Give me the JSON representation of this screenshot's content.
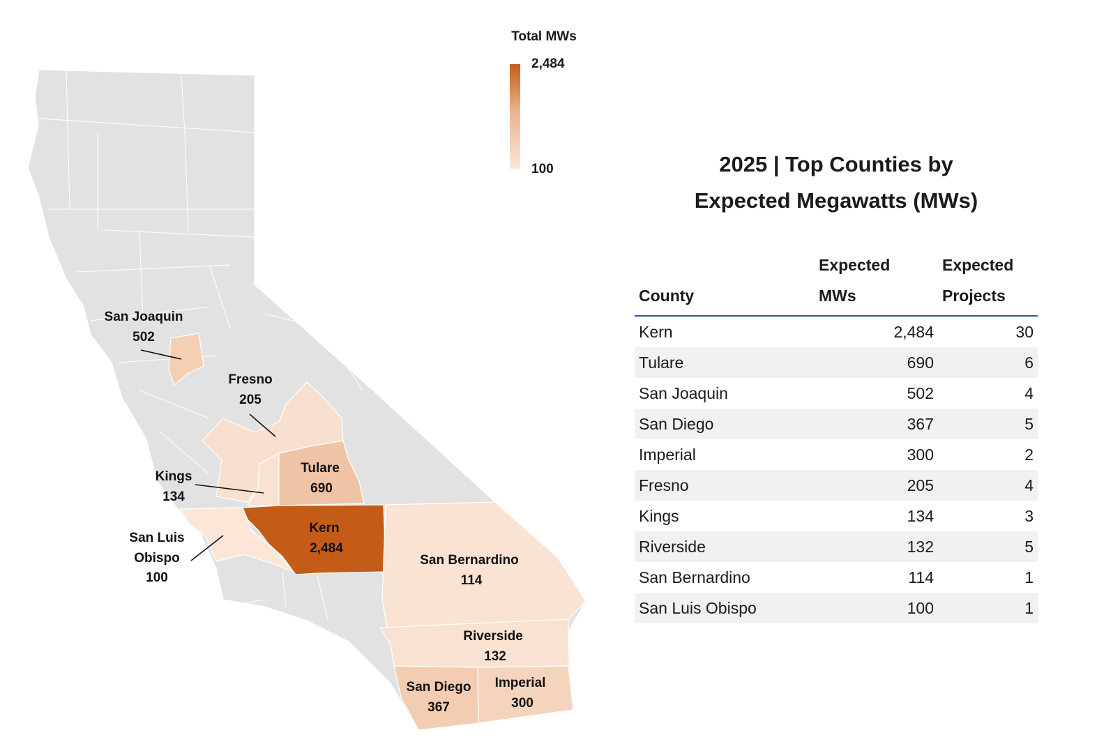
{
  "legend": {
    "title": "Total MWs",
    "max_label": "2,484",
    "min_label": "100",
    "max_value": 2484,
    "min_value": 100,
    "color_high": "#c45c17",
    "color_low": "#fbe6d8",
    "base_color": "#e2e2e2"
  },
  "map_labels": [
    {
      "name": "San Joaquin",
      "value": "502"
    },
    {
      "name": "Fresno",
      "value": "205"
    },
    {
      "name": "Tulare",
      "value": "690"
    },
    {
      "name": "Kings",
      "value": "134"
    },
    {
      "name": "Kern",
      "value": "2,484"
    },
    {
      "name": "San Luis",
      "name2": "Obispo",
      "value": "100"
    },
    {
      "name": "San Bernardino",
      "value": "114"
    },
    {
      "name": "Riverside",
      "value": "132"
    },
    {
      "name": "San Diego",
      "value": "367"
    },
    {
      "name": "Imperial",
      "value": "300"
    }
  ],
  "table": {
    "title_line1": "2025 | Top Counties by",
    "title_line2": "Expected Megawatts (MWs)",
    "headers": {
      "county": "County",
      "mws_line1": "Expected",
      "mws_line2": "MWs",
      "projects_line1": "Expected",
      "projects_line2": "Projects"
    },
    "rows": [
      {
        "county": "Kern",
        "mws": "2,484",
        "projects": "30"
      },
      {
        "county": "Tulare",
        "mws": "690",
        "projects": "6"
      },
      {
        "county": "San Joaquin",
        "mws": "502",
        "projects": "4"
      },
      {
        "county": "San Diego",
        "mws": "367",
        "projects": "5"
      },
      {
        "county": "Imperial",
        "mws": "300",
        "projects": "2"
      },
      {
        "county": "Fresno",
        "mws": "205",
        "projects": "4"
      },
      {
        "county": "Kings",
        "mws": "134",
        "projects": "3"
      },
      {
        "county": "Riverside",
        "mws": "132",
        "projects": "5"
      },
      {
        "county": "San Bernardino",
        "mws": "114",
        "projects": "1"
      },
      {
        "county": "San Luis Obispo",
        "mws": "100",
        "projects": "1"
      }
    ]
  }
}
